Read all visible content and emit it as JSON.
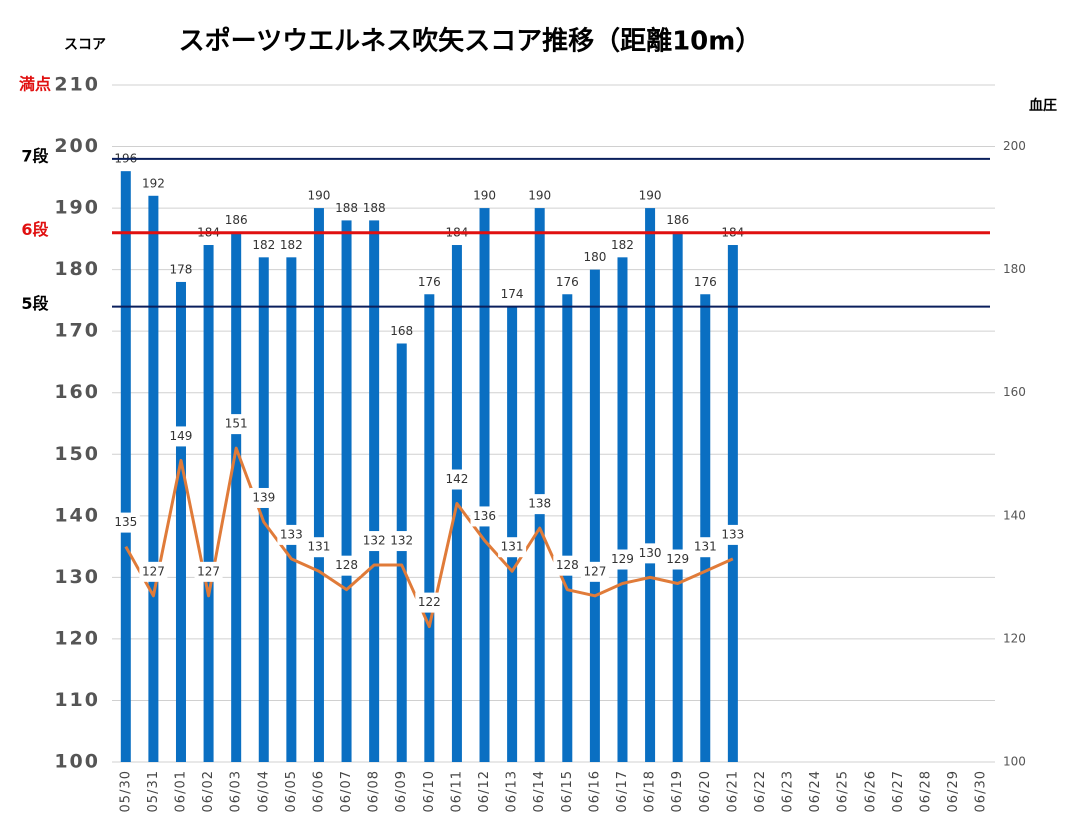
{
  "chart_data": {
    "type": "bar",
    "title": "スポーツウエルネス吹矢スコア推移（距離10m）",
    "y_label": "スコア",
    "y2_label": "血圧",
    "categories": [
      "05/30",
      "05/31",
      "06/01",
      "06/02",
      "06/03",
      "06/04",
      "06/05",
      "06/06",
      "06/07",
      "06/08",
      "06/09",
      "06/10",
      "06/11",
      "06/12",
      "06/13",
      "06/14",
      "06/15",
      "06/16",
      "06/17",
      "06/18",
      "06/19",
      "06/20",
      "06/21",
      "06/22",
      "06/23",
      "06/24",
      "06/25",
      "06/26",
      "06/27",
      "06/28",
      "06/29",
      "06/30"
    ],
    "series": [
      {
        "type": "bar",
        "color": "#0a6fc2",
        "values": [
          196,
          192,
          178,
          184,
          186,
          182,
          182,
          190,
          188,
          188,
          168,
          176,
          184,
          190,
          174,
          190,
          176,
          180,
          182,
          190,
          186,
          176,
          184,
          null,
          null,
          null,
          null,
          null,
          null,
          null,
          null,
          null
        ]
      },
      {
        "type": "line",
        "axis": "y2",
        "color": "#e07b39",
        "values": [
          135,
          127,
          149,
          127,
          151,
          139,
          133,
          131,
          128,
          132,
          132,
          122,
          142,
          136,
          131,
          138,
          128,
          127,
          129,
          130,
          129,
          131,
          133,
          null,
          null,
          null,
          null,
          null,
          null,
          null,
          null,
          null
        ]
      }
    ],
    "ylim": [
      100,
      210
    ],
    "yticks": [
      100,
      110,
      120,
      130,
      140,
      150,
      160,
      170,
      180,
      190,
      200,
      210
    ],
    "y2lim": [
      100,
      210
    ],
    "y2ticks": [
      100,
      120,
      140,
      160,
      180,
      200
    ],
    "grid": true,
    "reference_lines": [
      {
        "label": "7段",
        "value": 198,
        "color": "#0a1f5c",
        "label_color": "#000000"
      },
      {
        "label": "6段",
        "value": 186,
        "color": "#e01010",
        "label_color": "#e01010"
      },
      {
        "label": "5段",
        "value": 174,
        "color": "#0a1f5c",
        "label_color": "#000000"
      }
    ],
    "annotations": [
      {
        "label": "満点",
        "value": 210,
        "color": "#e01010"
      }
    ]
  }
}
